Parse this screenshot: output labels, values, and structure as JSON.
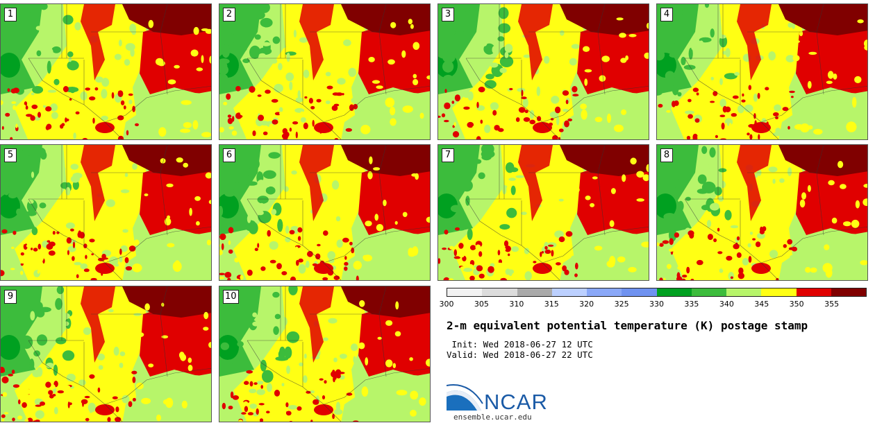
{
  "panels": [
    {
      "label": "1"
    },
    {
      "label": "2"
    },
    {
      "label": "3"
    },
    {
      "label": "4"
    },
    {
      "label": "5"
    },
    {
      "label": "6"
    },
    {
      "label": "7"
    },
    {
      "label": "8"
    },
    {
      "label": "9"
    },
    {
      "label": "10"
    }
  ],
  "colorbar": {
    "colors": [
      "#f2f2f2",
      "#dcdcdc",
      "#aaaaaa",
      "#bcd0ff",
      "#8aa8f8",
      "#6f92f0",
      "#00a020",
      "#3cbc3c",
      "#b7f56a",
      "#ffff14",
      "#e00000",
      "#800000"
    ],
    "ticks": [
      "300",
      "305",
      "310",
      "315",
      "320",
      "325",
      "330",
      "335",
      "340",
      "345",
      "350",
      "355"
    ]
  },
  "title": "2-m equivalent potential temperature (K) postage stamp",
  "init_line": " Init: Wed 2018-06-27 12 UTC",
  "valid_line": "Valid: Wed 2018-06-27 22 UTC",
  "logo": {
    "text": "NCAR",
    "url": "ensemble.ucar.edu"
  },
  "map_colors": {
    "ocean_gulf": "#b7f56a",
    "green_dark": "#00a020",
    "green_mid": "#3cbc3c",
    "green_light": "#b7f56a",
    "yellow": "#ffff14",
    "red": "#e00000",
    "maroon": "#800000"
  }
}
